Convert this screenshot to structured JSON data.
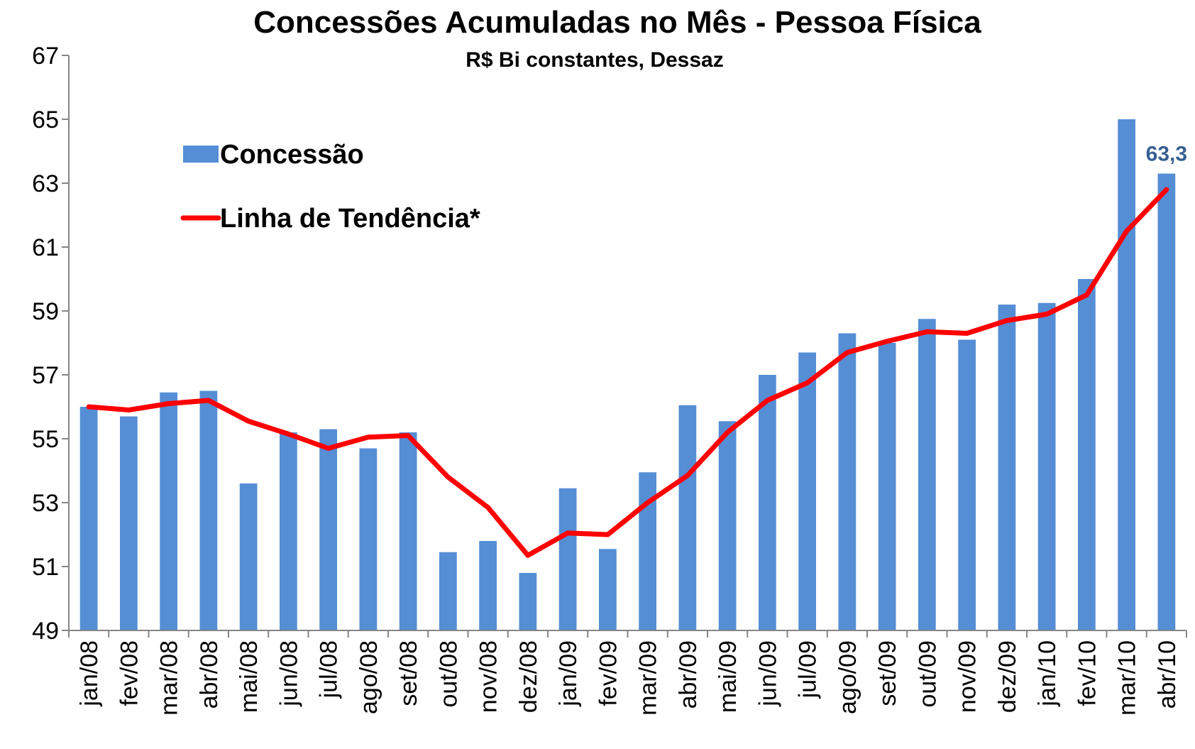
{
  "chart_data": {
    "type": "bar-line",
    "title": "Concessões Acumuladas no Mês - Pessoa Física",
    "subtitle": "R$ Bi constantes, Dessaz",
    "categories": [
      "jan/08",
      "fev/08",
      "mar/08",
      "abr/08",
      "mai/08",
      "jun/08",
      "jul/08",
      "ago/08",
      "set/08",
      "out/08",
      "nov/08",
      "dez/08",
      "jan/09",
      "fev/09",
      "mar/09",
      "abr/09",
      "mai/09",
      "jun/09",
      "jul/09",
      "ago/09",
      "set/09",
      "out/09",
      "nov/09",
      "dez/09",
      "jan/10",
      "fev/10",
      "mar/10",
      "abr/10"
    ],
    "series": [
      {
        "name": "Concessão",
        "type": "bar",
        "color": "#558ed5",
        "values": [
          56.0,
          55.7,
          56.45,
          56.5,
          53.6,
          55.2,
          55.3,
          54.7,
          55.2,
          51.45,
          51.8,
          50.8,
          53.45,
          51.55,
          53.95,
          56.05,
          55.55,
          57.0,
          57.7,
          58.3,
          58.0,
          58.75,
          58.1,
          59.2,
          59.25,
          60.0,
          65.0,
          63.3
        ],
        "value_labels": [
          null,
          null,
          null,
          null,
          null,
          null,
          null,
          null,
          null,
          null,
          null,
          null,
          null,
          null,
          null,
          null,
          null,
          null,
          null,
          null,
          null,
          null,
          null,
          null,
          null,
          null,
          null,
          "63,3"
        ],
        "label_color": "#376092"
      },
      {
        "name": "Linha de Tendência*",
        "type": "line",
        "color": "#ff0000",
        "values": [
          56.0,
          55.9,
          56.1,
          56.2,
          55.55,
          55.15,
          54.7,
          55.05,
          55.1,
          53.8,
          52.85,
          51.35,
          52.05,
          52.0,
          53.0,
          53.85,
          55.2,
          56.2,
          56.75,
          57.7,
          58.05,
          58.35,
          58.3,
          58.7,
          58.9,
          59.5,
          61.5,
          62.8
        ]
      }
    ],
    "ylim": [
      49,
      67
    ],
    "yticks": [
      49,
      51,
      53,
      55,
      57,
      59,
      61,
      63,
      65,
      67
    ],
    "grid": false,
    "legend": "upper left"
  }
}
